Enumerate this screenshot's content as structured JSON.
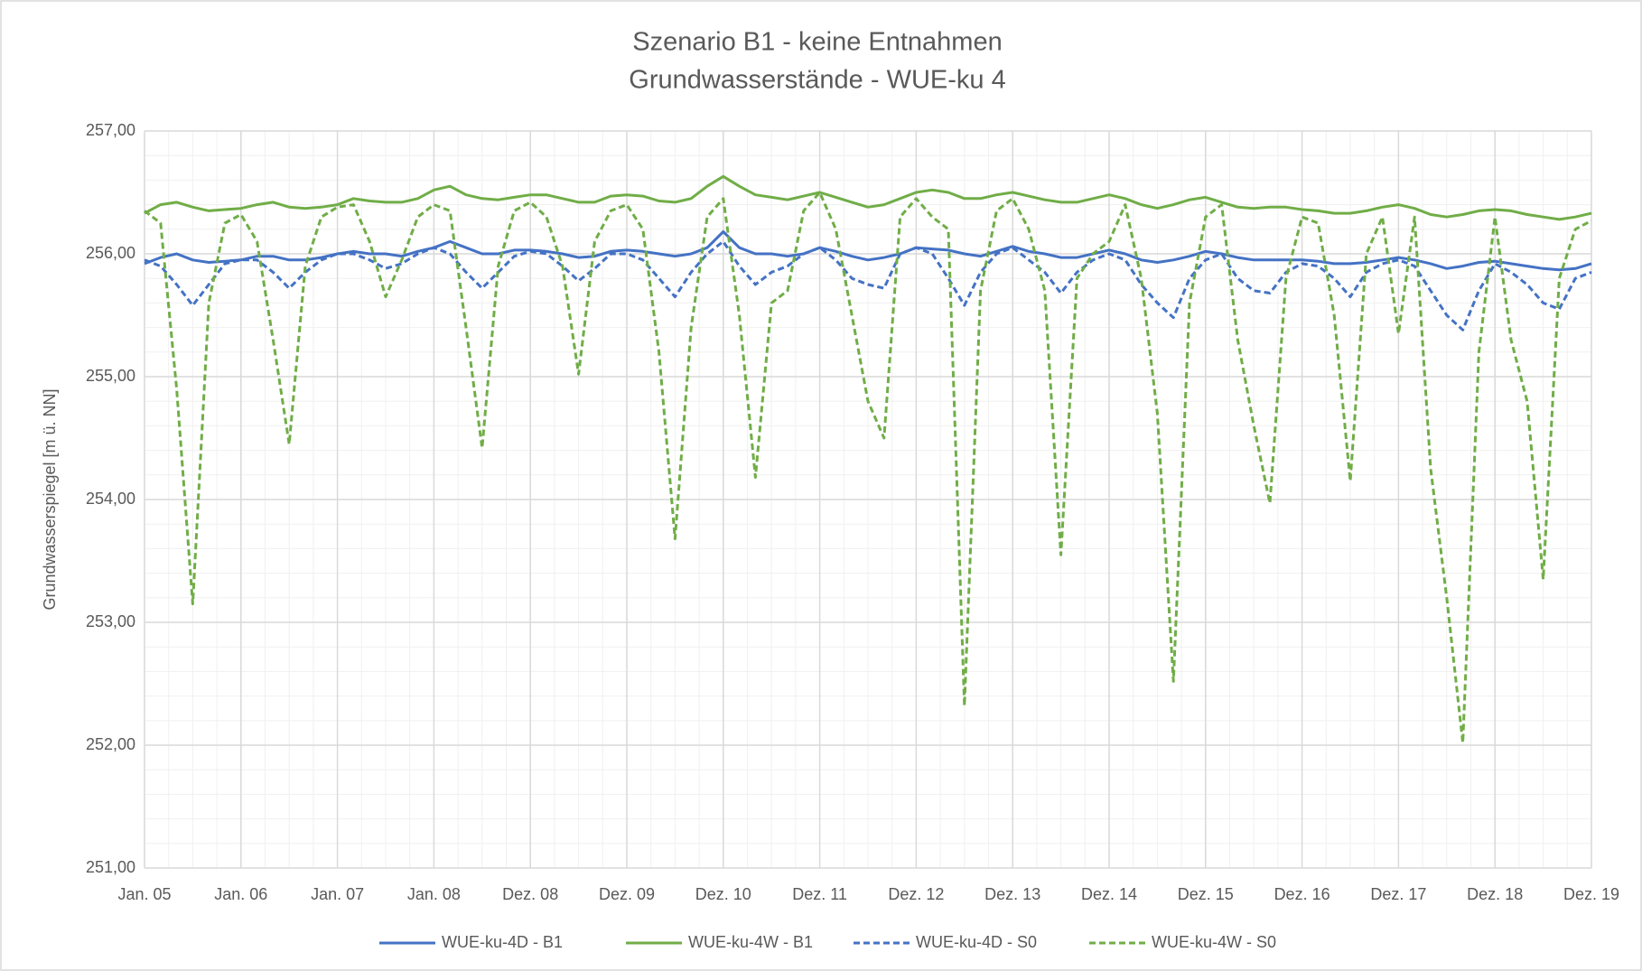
{
  "chart_data": {
    "type": "line",
    "title": "Szenario B1 - keine Entnahmen",
    "subtitle": "Grundwasserstände - WUE-ku 4",
    "y_label": "Grundwasserspiegel [m ü. NN]",
    "categories": [
      "Jan. 05",
      null,
      null,
      null,
      null,
      null,
      "Jan. 06",
      null,
      null,
      null,
      null,
      null,
      "Jan. 07",
      null,
      null,
      null,
      null,
      null,
      "Jan. 08",
      null,
      null,
      null,
      null,
      null,
      "Dez. 08",
      null,
      null,
      null,
      null,
      null,
      "Dez. 09",
      null,
      null,
      null,
      null,
      null,
      "Dez. 10",
      null,
      null,
      null,
      null,
      null,
      "Dez. 11",
      null,
      null,
      null,
      null,
      null,
      "Dez. 12",
      null,
      null,
      null,
      null,
      null,
      "Dez. 13",
      null,
      null,
      null,
      null,
      null,
      "Dez. 14",
      null,
      null,
      null,
      null,
      null,
      "Dez. 15",
      null,
      null,
      null,
      null,
      null,
      "Dez. 16",
      null,
      null,
      null,
      null,
      null,
      "Dez. 17",
      null,
      null,
      null,
      null,
      null,
      "Dez. 18",
      null,
      null,
      null,
      null,
      null,
      "Dez. 19"
    ],
    "ylim": [
      251,
      257
    ],
    "yticks": [
      {
        "value": 251,
        "label": "251,00"
      },
      {
        "value": 252,
        "label": "252,00"
      },
      {
        "value": 253,
        "label": "253,00"
      },
      {
        "value": 254,
        "label": "254,00"
      },
      {
        "value": 255,
        "label": "255,00"
      },
      {
        "value": 256,
        "label": "256,00"
      },
      {
        "value": 257,
        "label": "257,00"
      }
    ],
    "grid": true,
    "legend": "bottom",
    "series": [
      {
        "name": "WUE-ku-4D - B1",
        "color": "#4472c4",
        "dashed": false,
        "values": [
          255.92,
          255.97,
          256.0,
          255.95,
          255.93,
          255.94,
          255.95,
          255.98,
          255.98,
          255.95,
          255.95,
          255.97,
          256.0,
          256.02,
          256.0,
          256.0,
          255.98,
          256.02,
          256.05,
          256.1,
          256.05,
          256.0,
          256.0,
          256.03,
          256.03,
          256.02,
          256.0,
          255.97,
          255.98,
          256.02,
          256.03,
          256.02,
          256.0,
          255.98,
          256.0,
          256.05,
          256.18,
          256.05,
          256.0,
          256.0,
          255.98,
          256.0,
          256.05,
          256.02,
          255.98,
          255.95,
          255.97,
          256.0,
          256.05,
          256.04,
          256.03,
          256.0,
          255.98,
          256.02,
          256.06,
          256.02,
          256.0,
          255.97,
          255.97,
          256.0,
          256.03,
          256.0,
          255.95,
          255.93,
          255.95,
          255.98,
          256.02,
          256.0,
          255.97,
          255.95,
          255.95,
          255.95,
          255.95,
          255.94,
          255.92,
          255.92,
          255.93,
          255.95,
          255.97,
          255.95,
          255.92,
          255.88,
          255.9,
          255.93,
          255.94,
          255.92,
          255.9,
          255.88,
          255.87,
          255.88,
          255.92
        ]
      },
      {
        "name": "WUE-ku-4W - B1",
        "color": "#70ad47",
        "dashed": false,
        "values": [
          256.33,
          256.4,
          256.42,
          256.38,
          256.35,
          256.36,
          256.37,
          256.4,
          256.42,
          256.38,
          256.37,
          256.38,
          256.4,
          256.45,
          256.43,
          256.42,
          256.42,
          256.45,
          256.52,
          256.55,
          256.48,
          256.45,
          256.44,
          256.46,
          256.48,
          256.48,
          256.45,
          256.42,
          256.42,
          256.47,
          256.48,
          256.47,
          256.43,
          256.42,
          256.45,
          256.55,
          256.63,
          256.55,
          256.48,
          256.46,
          256.44,
          256.47,
          256.5,
          256.46,
          256.42,
          256.38,
          256.4,
          256.45,
          256.5,
          256.52,
          256.5,
          256.45,
          256.45,
          256.48,
          256.5,
          256.47,
          256.44,
          256.42,
          256.42,
          256.45,
          256.48,
          256.45,
          256.4,
          256.37,
          256.4,
          256.44,
          256.46,
          256.42,
          256.38,
          256.37,
          256.38,
          256.38,
          256.36,
          256.35,
          256.33,
          256.33,
          256.35,
          256.38,
          256.4,
          256.37,
          256.32,
          256.3,
          256.32,
          256.35,
          256.36,
          256.35,
          256.32,
          256.3,
          256.28,
          256.3,
          256.33
        ]
      },
      {
        "name": "WUE-ku-4D - S0",
        "color": "#4472c4",
        "dashed": true,
        "values": [
          255.95,
          255.9,
          255.75,
          255.58,
          255.75,
          255.92,
          255.95,
          255.95,
          255.85,
          255.72,
          255.85,
          255.95,
          256.0,
          256.0,
          255.95,
          255.88,
          255.92,
          256.0,
          256.05,
          256.0,
          255.85,
          255.72,
          255.85,
          255.98,
          256.02,
          256.0,
          255.9,
          255.78,
          255.88,
          256.0,
          256.0,
          255.95,
          255.8,
          255.65,
          255.85,
          256.0,
          256.1,
          255.9,
          255.75,
          255.85,
          255.9,
          256.0,
          256.05,
          255.95,
          255.8,
          255.75,
          255.72,
          256.0,
          256.05,
          256.0,
          255.8,
          255.58,
          255.85,
          256.0,
          256.05,
          255.95,
          255.85,
          255.68,
          255.85,
          255.95,
          256.0,
          255.95,
          255.75,
          255.6,
          255.48,
          255.8,
          255.95,
          256.0,
          255.8,
          255.7,
          255.68,
          255.85,
          255.92,
          255.9,
          255.8,
          255.65,
          255.85,
          255.92,
          255.95,
          255.9,
          255.7,
          255.5,
          255.38,
          255.7,
          255.92,
          255.85,
          255.75,
          255.6,
          255.55,
          255.8,
          255.85
        ]
      },
      {
        "name": "WUE-ku-4W - S0",
        "color": "#70ad47",
        "dashed": true,
        "values": [
          256.35,
          256.25,
          254.9,
          253.15,
          255.6,
          256.25,
          256.32,
          256.1,
          255.3,
          254.45,
          255.9,
          256.3,
          256.38,
          256.4,
          256.1,
          255.65,
          255.95,
          256.3,
          256.4,
          256.35,
          255.4,
          254.42,
          255.9,
          256.35,
          256.42,
          256.3,
          255.9,
          255.02,
          256.1,
          256.35,
          256.4,
          256.2,
          255.2,
          253.68,
          255.4,
          256.3,
          256.45,
          255.5,
          254.18,
          255.6,
          255.7,
          256.35,
          256.5,
          256.2,
          255.5,
          254.8,
          254.5,
          256.3,
          256.45,
          256.3,
          256.2,
          252.32,
          255.7,
          256.35,
          256.45,
          256.2,
          255.7,
          253.55,
          255.8,
          256.0,
          256.1,
          256.4,
          255.8,
          254.7,
          252.52,
          255.6,
          256.3,
          256.4,
          255.3,
          254.6,
          253.97,
          255.8,
          256.3,
          256.25,
          255.5,
          254.15,
          256.0,
          256.3,
          255.35,
          256.3,
          254.25,
          253.2,
          252.02,
          255.2,
          256.3,
          255.3,
          254.8,
          253.35,
          255.8,
          256.2,
          256.27
        ]
      }
    ]
  }
}
